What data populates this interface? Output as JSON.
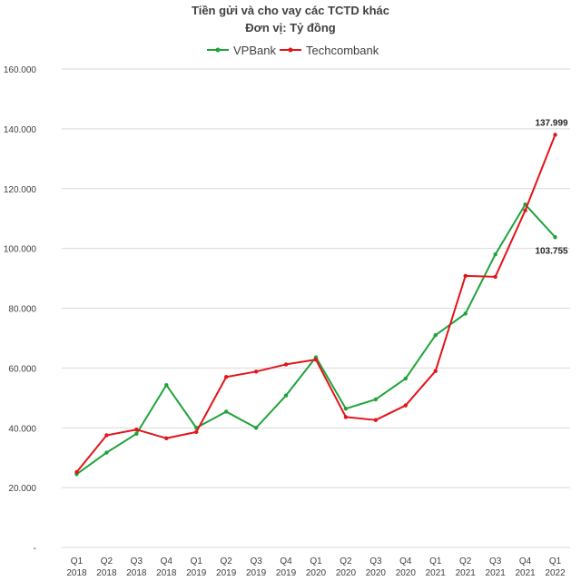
{
  "chart_data": {
    "type": "line",
    "title": "Tiền gửi và cho vay các TCTD khác",
    "subtitle": "Đơn vị: Tỷ đồng",
    "y_tick_labels": [
      "-",
      "20.000",
      "40.000",
      "60.000",
      "80.000",
      "100.000",
      "120.000",
      "140.000",
      "160.000"
    ],
    "ylim": [
      0,
      160000
    ],
    "y_ticks": [
      0,
      20000,
      40000,
      60000,
      80000,
      100000,
      120000,
      140000,
      160000
    ],
    "categories": [
      [
        "Q1",
        "2018"
      ],
      [
        "Q2",
        "2018"
      ],
      [
        "Q3",
        "2018"
      ],
      [
        "Q4",
        "2018"
      ],
      [
        "Q1",
        "2019"
      ],
      [
        "Q2",
        "2019"
      ],
      [
        "Q3",
        "2019"
      ],
      [
        "Q4",
        "2019"
      ],
      [
        "Q1",
        "2020"
      ],
      [
        "Q2",
        "2020"
      ],
      [
        "Q3",
        "2020"
      ],
      [
        "Q4",
        "2020"
      ],
      [
        "Q1",
        "2021"
      ],
      [
        "Q2",
        "2021"
      ],
      [
        "Q3",
        "2021"
      ],
      [
        "Q4",
        "2021"
      ],
      [
        "Q1",
        "2022"
      ]
    ],
    "grid": true,
    "legend_position": "top",
    "series": [
      {
        "name": "VPBank",
        "color": "#1fa33a",
        "values": [
          24500,
          31700,
          38000,
          54300,
          40000,
          45400,
          40000,
          50800,
          63600,
          46400,
          49500,
          56500,
          71000,
          78200,
          98000,
          114700,
          103755
        ],
        "end_label": "103.755"
      },
      {
        "name": "Techcombank",
        "color": "#e3141b",
        "values": [
          25200,
          37500,
          39400,
          36500,
          38600,
          57000,
          58800,
          61200,
          62800,
          43600,
          42600,
          47500,
          59000,
          90800,
          90500,
          112700,
          137999
        ],
        "end_label": "137.999"
      }
    ]
  }
}
